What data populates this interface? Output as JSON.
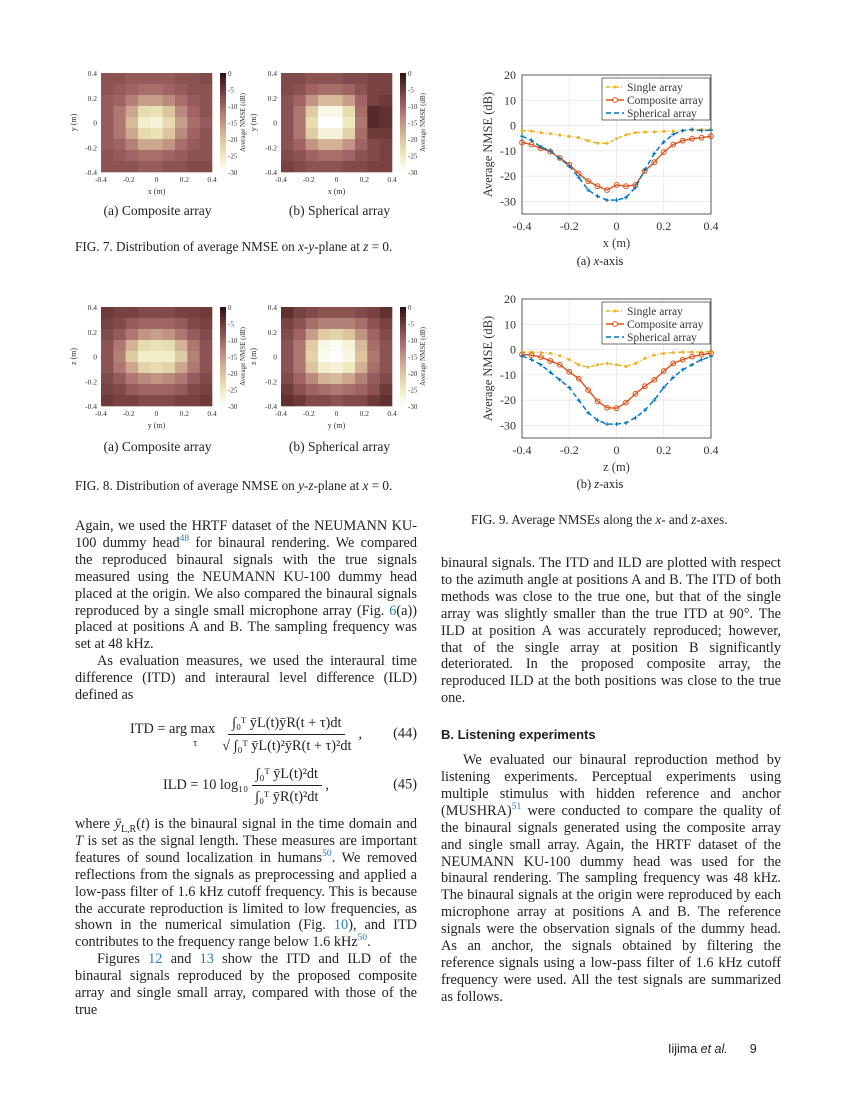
{
  "colormap": {
    "stops": [
      [
        0,
        "#2b0f0f"
      ],
      [
        -5,
        "#6e3a3a"
      ],
      [
        -10,
        "#a06464"
      ],
      [
        -15,
        "#c29484"
      ],
      [
        -20,
        "#dcc49e"
      ],
      [
        -25,
        "#eeeabc"
      ],
      [
        -30,
        "#ffffff"
      ]
    ]
  },
  "series_colors": {
    "single": "#edb120",
    "composite": "#d95319",
    "spherical": "#0072bd"
  },
  "chart_data": [
    {
      "id": "fig7a",
      "type": "heatmap",
      "xlabel": "x (m)",
      "ylabel": "y (m)",
      "colorbar_label": "Average NMSE (dB)",
      "xlim": [
        -0.4,
        0.4
      ],
      "ylim": [
        -0.4,
        0.4
      ],
      "clim": [
        -30,
        0
      ],
      "xticks": [
        "-0.4",
        "-0.2",
        "0",
        "0.2",
        "0.4"
      ],
      "yticks": [
        "0.4",
        "0.2",
        "0",
        "-0.2",
        "-0.4"
      ],
      "cticks": [
        "0",
        "-5",
        "-10",
        "-15",
        "-20",
        "-25",
        "-30"
      ],
      "x": [
        -0.4,
        -0.3,
        -0.2,
        -0.1,
        0,
        0.1,
        0.2,
        0.3,
        0.4
      ],
      "y": [
        0.4,
        0.3,
        0.2,
        0.1,
        0,
        -0.1,
        -0.2,
        -0.3,
        -0.4
      ],
      "values": [
        [
          -8,
          -8,
          -9,
          -9,
          -9,
          -9,
          -8,
          -8,
          -7
        ],
        [
          -8,
          -9,
          -10,
          -11,
          -11,
          -10,
          -9,
          -8,
          -8
        ],
        [
          -9,
          -10,
          -13,
          -16,
          -16,
          -14,
          -11,
          -9,
          -8
        ],
        [
          -9,
          -12,
          -17,
          -23,
          -24,
          -20,
          -14,
          -10,
          -8
        ],
        [
          -9,
          -12,
          -19,
          -26,
          -27,
          -23,
          -16,
          -11,
          -9
        ],
        [
          -9,
          -12,
          -17,
          -23,
          -24,
          -20,
          -14,
          -10,
          -8
        ],
        [
          -9,
          -10,
          -13,
          -17,
          -17,
          -15,
          -11,
          -9,
          -8
        ],
        [
          -8,
          -9,
          -10,
          -11,
          -11,
          -10,
          -9,
          -8,
          -8
        ],
        [
          -8,
          -8,
          -8,
          -9,
          -9,
          -8,
          -8,
          -7,
          -7
        ]
      ]
    },
    {
      "id": "fig7b",
      "type": "heatmap",
      "xlabel": "x (m)",
      "ylabel": "y (m)",
      "colorbar_label": "Average NMSE (dB)",
      "xlim": [
        -0.4,
        0.4
      ],
      "ylim": [
        -0.4,
        0.4
      ],
      "clim": [
        -30,
        0
      ],
      "xticks": [
        "-0.4",
        "-0.2",
        "0",
        "0.2",
        "0.4"
      ],
      "yticks": [
        "0.4",
        "0.2",
        "0",
        "-0.2",
        "-0.4"
      ],
      "cticks": [
        "0",
        "-5",
        "-10",
        "-15",
        "-20",
        "-25",
        "-30"
      ],
      "x": [
        -0.4,
        -0.3,
        -0.2,
        -0.1,
        0,
        0.1,
        0.2,
        0.3,
        0.4
      ],
      "y": [
        0.4,
        0.3,
        0.2,
        0.1,
        0,
        -0.1,
        -0.2,
        -0.3,
        -0.4
      ],
      "values": [
        [
          -7,
          -7,
          -8,
          -8,
          -8,
          -7,
          -7,
          -6,
          -6
        ],
        [
          -7,
          -8,
          -10,
          -11,
          -11,
          -10,
          -8,
          -6,
          -6
        ],
        [
          -8,
          -10,
          -15,
          -19,
          -19,
          -16,
          -10,
          -6,
          -5
        ],
        [
          -8,
          -12,
          -21,
          -28,
          -28,
          -23,
          -11,
          -3,
          -4
        ],
        [
          -8,
          -12,
          -23,
          -30,
          -30,
          -25,
          -12,
          -3,
          -4
        ],
        [
          -8,
          -12,
          -21,
          -27,
          -27,
          -22,
          -11,
          -5,
          -5
        ],
        [
          -8,
          -10,
          -15,
          -18,
          -18,
          -15,
          -10,
          -7,
          -6
        ],
        [
          -7,
          -8,
          -10,
          -11,
          -11,
          -10,
          -8,
          -7,
          -6
        ],
        [
          -6,
          -7,
          -8,
          -8,
          -8,
          -7,
          -7,
          -6,
          -6
        ]
      ]
    },
    {
      "id": "fig8a",
      "type": "heatmap",
      "xlabel": "y (m)",
      "ylabel": "z (m)",
      "colorbar_label": "Average NMSE (dB)",
      "xlim": [
        -0.4,
        0.4
      ],
      "ylim": [
        -0.4,
        0.4
      ],
      "clim": [
        -30,
        0
      ],
      "xticks": [
        "-0.4",
        "-0.2",
        "0",
        "0.2",
        "0.4"
      ],
      "yticks": [
        "0.4",
        "0.2",
        "0",
        "-0.2",
        "-0.4"
      ],
      "cticks": [
        "0",
        "-5",
        "-10",
        "-15",
        "-20",
        "-25",
        "-30"
      ],
      "x": [
        -0.4,
        -0.3,
        -0.2,
        -0.1,
        0,
        0.1,
        0.2,
        0.3,
        0.4
      ],
      "y": [
        0.4,
        0.3,
        0.2,
        0.1,
        0,
        -0.1,
        -0.2,
        -0.3,
        -0.4
      ],
      "values": [
        [
          -5,
          -6,
          -6,
          -7,
          -7,
          -7,
          -6,
          -6,
          -5
        ],
        [
          -6,
          -7,
          -9,
          -10,
          -10,
          -10,
          -9,
          -7,
          -6
        ],
        [
          -7,
          -9,
          -12,
          -15,
          -16,
          -15,
          -12,
          -9,
          -7
        ],
        [
          -8,
          -12,
          -18,
          -23,
          -24,
          -23,
          -18,
          -12,
          -8
        ],
        [
          -8,
          -13,
          -21,
          -26,
          -26,
          -26,
          -21,
          -13,
          -8
        ],
        [
          -8,
          -12,
          -17,
          -22,
          -23,
          -22,
          -17,
          -12,
          -8
        ],
        [
          -7,
          -9,
          -12,
          -14,
          -15,
          -14,
          -12,
          -9,
          -7
        ],
        [
          -6,
          -7,
          -9,
          -10,
          -10,
          -10,
          -9,
          -7,
          -6
        ],
        [
          -5,
          -6,
          -6,
          -7,
          -7,
          -7,
          -6,
          -6,
          -5
        ]
      ]
    },
    {
      "id": "fig8b",
      "type": "heatmap",
      "xlabel": "y (m)",
      "ylabel": "z (m)",
      "colorbar_label": "Average NMSE (dB)",
      "xlim": [
        -0.4,
        0.4
      ],
      "ylim": [
        -0.4,
        0.4
      ],
      "clim": [
        -30,
        0
      ],
      "xticks": [
        "-0.4",
        "-0.2",
        "0",
        "0.2",
        "0.4"
      ],
      "yticks": [
        "0.4",
        "0.2",
        "0",
        "-0.2",
        "-0.4"
      ],
      "cticks": [
        "0",
        "-5",
        "-10",
        "-15",
        "-20",
        "-25",
        "-30"
      ],
      "x": [
        -0.4,
        -0.3,
        -0.2,
        -0.1,
        0,
        0.1,
        0.2,
        0.3,
        0.4
      ],
      "y": [
        0.4,
        0.3,
        0.2,
        0.1,
        0,
        -0.1,
        -0.2,
        -0.3,
        -0.4
      ],
      "values": [
        [
          -4,
          -6,
          -7,
          -8,
          -8,
          -8,
          -7,
          -6,
          -4
        ],
        [
          -6,
          -8,
          -11,
          -13,
          -13,
          -13,
          -11,
          -8,
          -6
        ],
        [
          -7,
          -10,
          -16,
          -21,
          -22,
          -20,
          -15,
          -10,
          -7
        ],
        [
          -8,
          -12,
          -21,
          -28,
          -29,
          -27,
          -19,
          -11,
          -8
        ],
        [
          -8,
          -12,
          -22,
          -29,
          -30,
          -28,
          -20,
          -12,
          -8
        ],
        [
          -8,
          -12,
          -20,
          -26,
          -27,
          -25,
          -18,
          -11,
          -8
        ],
        [
          -7,
          -10,
          -14,
          -18,
          -19,
          -17,
          -13,
          -9,
          -7
        ],
        [
          -5,
          -8,
          -10,
          -11,
          -12,
          -11,
          -10,
          -8,
          -5
        ],
        [
          -4,
          -5,
          -7,
          -7,
          -8,
          -7,
          -7,
          -5,
          -4
        ]
      ]
    },
    {
      "id": "fig9a",
      "type": "line",
      "xlabel": "x (m)",
      "ylabel": "Average NMSE (dB)",
      "xlim": [
        -0.4,
        0.4
      ],
      "ylim": [
        -35,
        20
      ],
      "grid": true,
      "legend": "top-right",
      "xticks": [
        -0.4,
        -0.2,
        0,
        0.2,
        0.4
      ],
      "yticks": [
        20,
        10,
        0,
        -10,
        -20,
        -30
      ],
      "x": [
        -0.4,
        -0.36,
        -0.32,
        -0.28,
        -0.24,
        -0.2,
        -0.16,
        -0.12,
        -0.08,
        -0.04,
        0,
        0.04,
        0.08,
        0.12,
        0.16,
        0.2,
        0.24,
        0.28,
        0.32,
        0.36,
        0.4
      ],
      "series": [
        {
          "name": "Single array",
          "key": "single",
          "values": [
            -2,
            -2.2,
            -2.8,
            -3.2,
            -3.8,
            -4.3,
            -4.8,
            -6,
            -7,
            -7,
            -5.2,
            -3.7,
            -2.8,
            -2.6,
            -2.5,
            -2.3,
            -2.2,
            -2,
            -1.8,
            -1.6,
            -1.5
          ]
        },
        {
          "name": "Composite array",
          "key": "composite",
          "values": [
            -6.7,
            -7.5,
            -9,
            -10.3,
            -12.8,
            -15.5,
            -19,
            -22,
            -24,
            -25.5,
            -23.5,
            -24,
            -23.5,
            -18,
            -14.5,
            -10.5,
            -7.5,
            -6,
            -5.2,
            -4.8,
            -4.2
          ]
        },
        {
          "name": "Spherical array",
          "key": "spherical",
          "values": [
            -4.2,
            -5.8,
            -8.5,
            -10,
            -13,
            -16,
            -20.5,
            -25.5,
            -28,
            -29.5,
            -29.5,
            -28.5,
            -24.5,
            -17.5,
            -11,
            -6.5,
            -3.5,
            -2,
            -1.5,
            -2,
            -1.8
          ]
        }
      ]
    },
    {
      "id": "fig9b",
      "type": "line",
      "xlabel": "z (m)",
      "ylabel": "Average NMSE (dB)",
      "xlim": [
        -0.4,
        0.4
      ],
      "ylim": [
        -35,
        20
      ],
      "grid": true,
      "legend": "top-right",
      "xticks": [
        -0.4,
        -0.2,
        0,
        0.2,
        0.4
      ],
      "yticks": [
        20,
        10,
        0,
        -10,
        -20,
        -30
      ],
      "x": [
        -0.4,
        -0.36,
        -0.32,
        -0.28,
        -0.24,
        -0.2,
        -0.16,
        -0.12,
        -0.08,
        -0.04,
        0,
        0.04,
        0.08,
        0.12,
        0.16,
        0.2,
        0.24,
        0.28,
        0.32,
        0.36,
        0.4
      ],
      "series": [
        {
          "name": "Single array",
          "key": "single",
          "values": [
            -1,
            -1,
            -1.2,
            -1.5,
            -2.5,
            -4,
            -6,
            -7,
            -6,
            -5.5,
            -6,
            -6.7,
            -5.5,
            -3.5,
            -2.2,
            -1.5,
            -1.2,
            -1,
            -1,
            -1,
            -0.8
          ]
        },
        {
          "name": "Composite array",
          "key": "composite",
          "values": [
            -2,
            -2.2,
            -3,
            -4.5,
            -6,
            -8.8,
            -11.5,
            -16,
            -20.5,
            -23,
            -23.2,
            -21,
            -17.5,
            -14.5,
            -12,
            -8.5,
            -5.5,
            -4,
            -2.8,
            -2,
            -1.5
          ]
        },
        {
          "name": "Spherical array",
          "key": "spherical",
          "values": [
            -2.5,
            -4,
            -6,
            -9,
            -12,
            -15,
            -20,
            -25,
            -28,
            -29.5,
            -29.5,
            -29,
            -27,
            -24,
            -20,
            -15,
            -11,
            -8,
            -6,
            -4,
            -2.8
          ]
        }
      ]
    }
  ],
  "captions": {
    "fig7a": "(a) Composite array",
    "fig7b": "(b) Spherical array",
    "fig8a": "(a) Composite array",
    "fig8b": "(b) Spherical array",
    "fig9a_pre": "(a) ",
    "fig9a_math": "x",
    "fig9a_post": "-axis",
    "fig9b_pre": "(b) ",
    "fig9b_math": "z",
    "fig9b_post": "-axis",
    "fig7": [
      {
        "t": "FIG. 7.  Distribution of average NMSE on "
      },
      {
        "i": "x"
      },
      {
        "t": "-"
      },
      {
        "i": "y"
      },
      {
        "t": "-plane at "
      },
      {
        "i": "z"
      },
      {
        "t": " = 0."
      }
    ],
    "fig8": [
      {
        "t": "FIG. 8.  Distribution of average NMSE on "
      },
      {
        "i": "y"
      },
      {
        "t": "-"
      },
      {
        "i": "z"
      },
      {
        "t": "-plane at "
      },
      {
        "i": "x"
      },
      {
        "t": " = 0."
      }
    ],
    "fig9": [
      {
        "t": "FIG. 9.  Average NMSEs along the "
      },
      {
        "i": "x"
      },
      {
        "t": "- and "
      },
      {
        "i": "z"
      },
      {
        "t": "-axes."
      }
    ]
  },
  "left_column": {
    "p1": [
      {
        "t": "Again, we used the HRTF dataset of the NEUMANN KU-100 dummy head"
      },
      {
        "sup": "48"
      },
      {
        "t": " for binaural rendering. We compared the reproduced binaural signals with the true signals measured using the NEUMANN KU-100 dummy head placed at the origin. We also compared the binaural signals reproduced by a single small microphone array (Fig. "
      },
      {
        "ref": "6"
      },
      {
        "t": "(a)) placed at positions A and B. The sampling frequency was set at 48 kHz."
      }
    ],
    "p2": [
      {
        "t": "As evaluation measures, we used the interaural time difference (ITD) and interaural level difference (ILD) defined as"
      }
    ],
    "p3": [
      {
        "t": "where "
      },
      {
        "i": "ȳ"
      },
      {
        "sub": "L,R"
      },
      {
        "t": "("
      },
      {
        "i": "t"
      },
      {
        "t": ") is the binaural signal in the time domain and "
      },
      {
        "i": "T"
      },
      {
        "t": " is set as the signal length. These measures are important features of sound localization in humans"
      },
      {
        "sup": "50"
      },
      {
        "t": ". We removed reflections from the signals as preprocessing and applied a low-pass filter of 1.6 kHz cutoff frequency. This is because the accurate reproduction is limited to low frequencies, as shown in the numerical simulation (Fig. "
      },
      {
        "ref": "10"
      },
      {
        "t": "), and ITD contributes to the frequency range below 1.6 kHz"
      },
      {
        "sup": "50"
      },
      {
        "t": "."
      }
    ],
    "p4": [
      {
        "t": "Figures "
      },
      {
        "ref": "12"
      },
      {
        "t": " and "
      },
      {
        "ref": "13"
      },
      {
        "t": " show the ITD and ILD of the binaural signals reproduced by the proposed composite array and single small array, compared with those of the true"
      }
    ]
  },
  "equations": {
    "eq44": {
      "lhs": "ITD = arg max",
      "under": "τ",
      "num": "∫₀ᵀ ȳL(t)ȳR(t + τ)dt",
      "den": "√ ∫₀ᵀ ȳL(t)²ȳR(t + τ)²dt",
      "tail": ",",
      "number": "(44)"
    },
    "eq45": {
      "lhs": "ILD = 10 log₁₀",
      "num": "∫₀ᵀ ȳL(t)²dt",
      "den": "∫₀ᵀ ȳR(t)²dt",
      "tail": ",",
      "number": "(45)"
    }
  },
  "right_column": {
    "p1": [
      {
        "t": "binaural signals. The ITD and ILD are plotted with respect to the azimuth angle at positions A and B. The ITD of both methods was close to the true one, but that of the single array was slightly smaller than the true ITD at 90°. The ILD at position A was accurately reproduced; however, that of the single array at position B significantly deteriorated. In the proposed composite array, the reproduced ILD at the both positions was close to the true one."
      }
    ],
    "heading": "B. Listening experiments",
    "p2": [
      {
        "t": "We evaluated our binaural reproduction method by listening experiments. Perceptual experiments using multiple stimulus with hidden reference and anchor (MUSHRA)"
      },
      {
        "sup": "51"
      },
      {
        "t": " were conducted to compare the quality of the binaural signals generated using the composite array and single small array. Again, the HRTF dataset of the NEUMANN KU-100 dummy head was used for the binaural rendering. The sampling frequency was 48 kHz. The binaural signals at the origin were reproduced by each microphone array at positions A and B. The reference signals were the observation signals of the dummy head. As an anchor, the signals obtained by filtering the reference signals using a low-pass filter of 1.6 kHz cutoff frequency were used. All the test signals are summarized as follows."
      }
    ]
  },
  "footer": {
    "author": "Iijima",
    "etal": "et al.",
    "page": "9"
  }
}
